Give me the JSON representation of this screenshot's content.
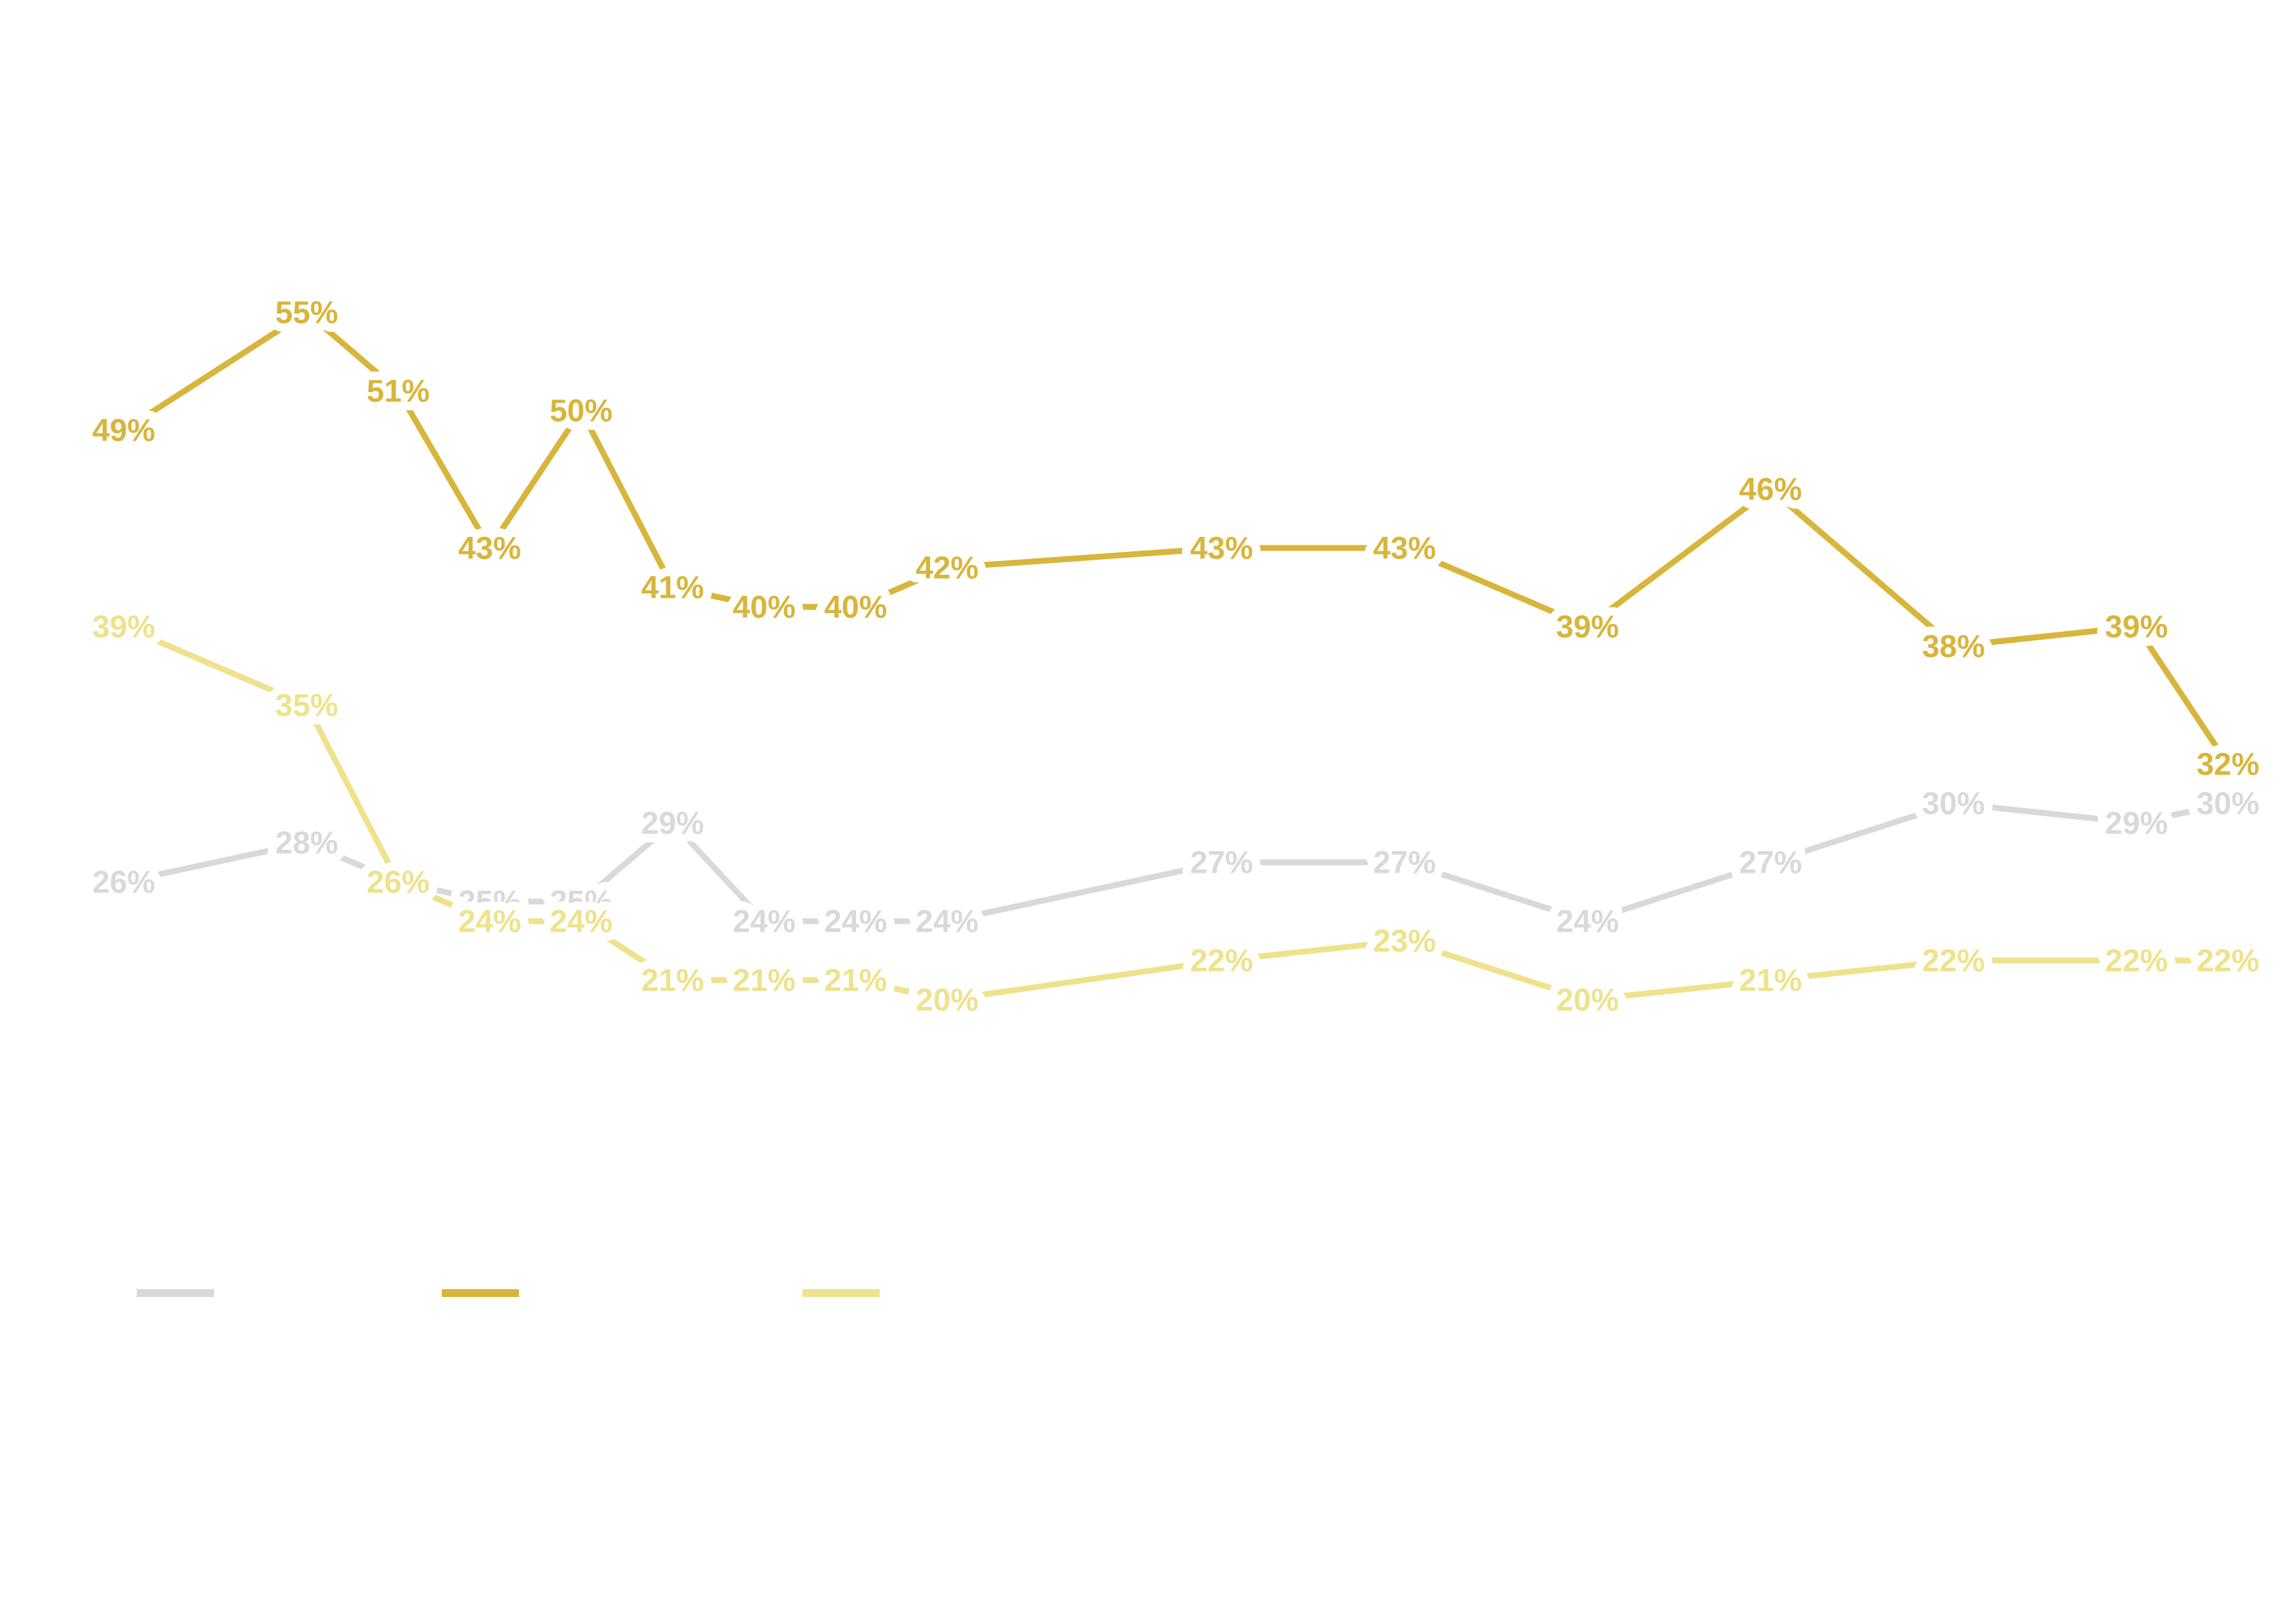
{
  "chart_data": {
    "type": "line",
    "x": [
      0,
      2,
      3,
      4,
      5,
      6,
      7,
      8,
      9,
      12,
      14,
      16,
      18,
      20,
      22,
      23
    ],
    "xlim": [
      0,
      23
    ],
    "ylim": [
      0,
      70
    ],
    "series": [
      {
        "color": "#d9d9d9",
        "values": [
          26,
          28,
          26,
          25,
          25,
          29,
          24,
          24,
          24,
          27,
          27,
          24,
          27,
          30,
          29,
          30
        ],
        "value_labels": [
          "26%",
          "28%",
          "26%",
          "25%",
          "25%",
          "29%",
          "24%",
          "24%",
          "24%",
          "27%",
          "27%",
          "24%",
          "27%",
          "30%",
          "29%",
          "30%"
        ]
      },
      {
        "color": "#d8b53b",
        "values": [
          49,
          55,
          51,
          43,
          50,
          41,
          40,
          40,
          42,
          43,
          43,
          39,
          46,
          38,
          39,
          32
        ],
        "value_labels": [
          "49%",
          "55%",
          "51%",
          "43%",
          "50%",
          "41%",
          "40%",
          "40%",
          "42%",
          "43%",
          "43%",
          "39%",
          "46%",
          "38%",
          "39%",
          "32%"
        ]
      },
      {
        "color": "#efe28c",
        "values": [
          39,
          35,
          26,
          24,
          24,
          21,
          21,
          21,
          20,
          22,
          23,
          20,
          21,
          22,
          22,
          22
        ],
        "value_labels": [
          "39%",
          "35%",
          "26%",
          "24%",
          "24%",
          "21%",
          "21%",
          "21%",
          "20%",
          "22%",
          "23%",
          "20%",
          "21%",
          "22%",
          "22%",
          "22%"
        ]
      }
    ]
  }
}
